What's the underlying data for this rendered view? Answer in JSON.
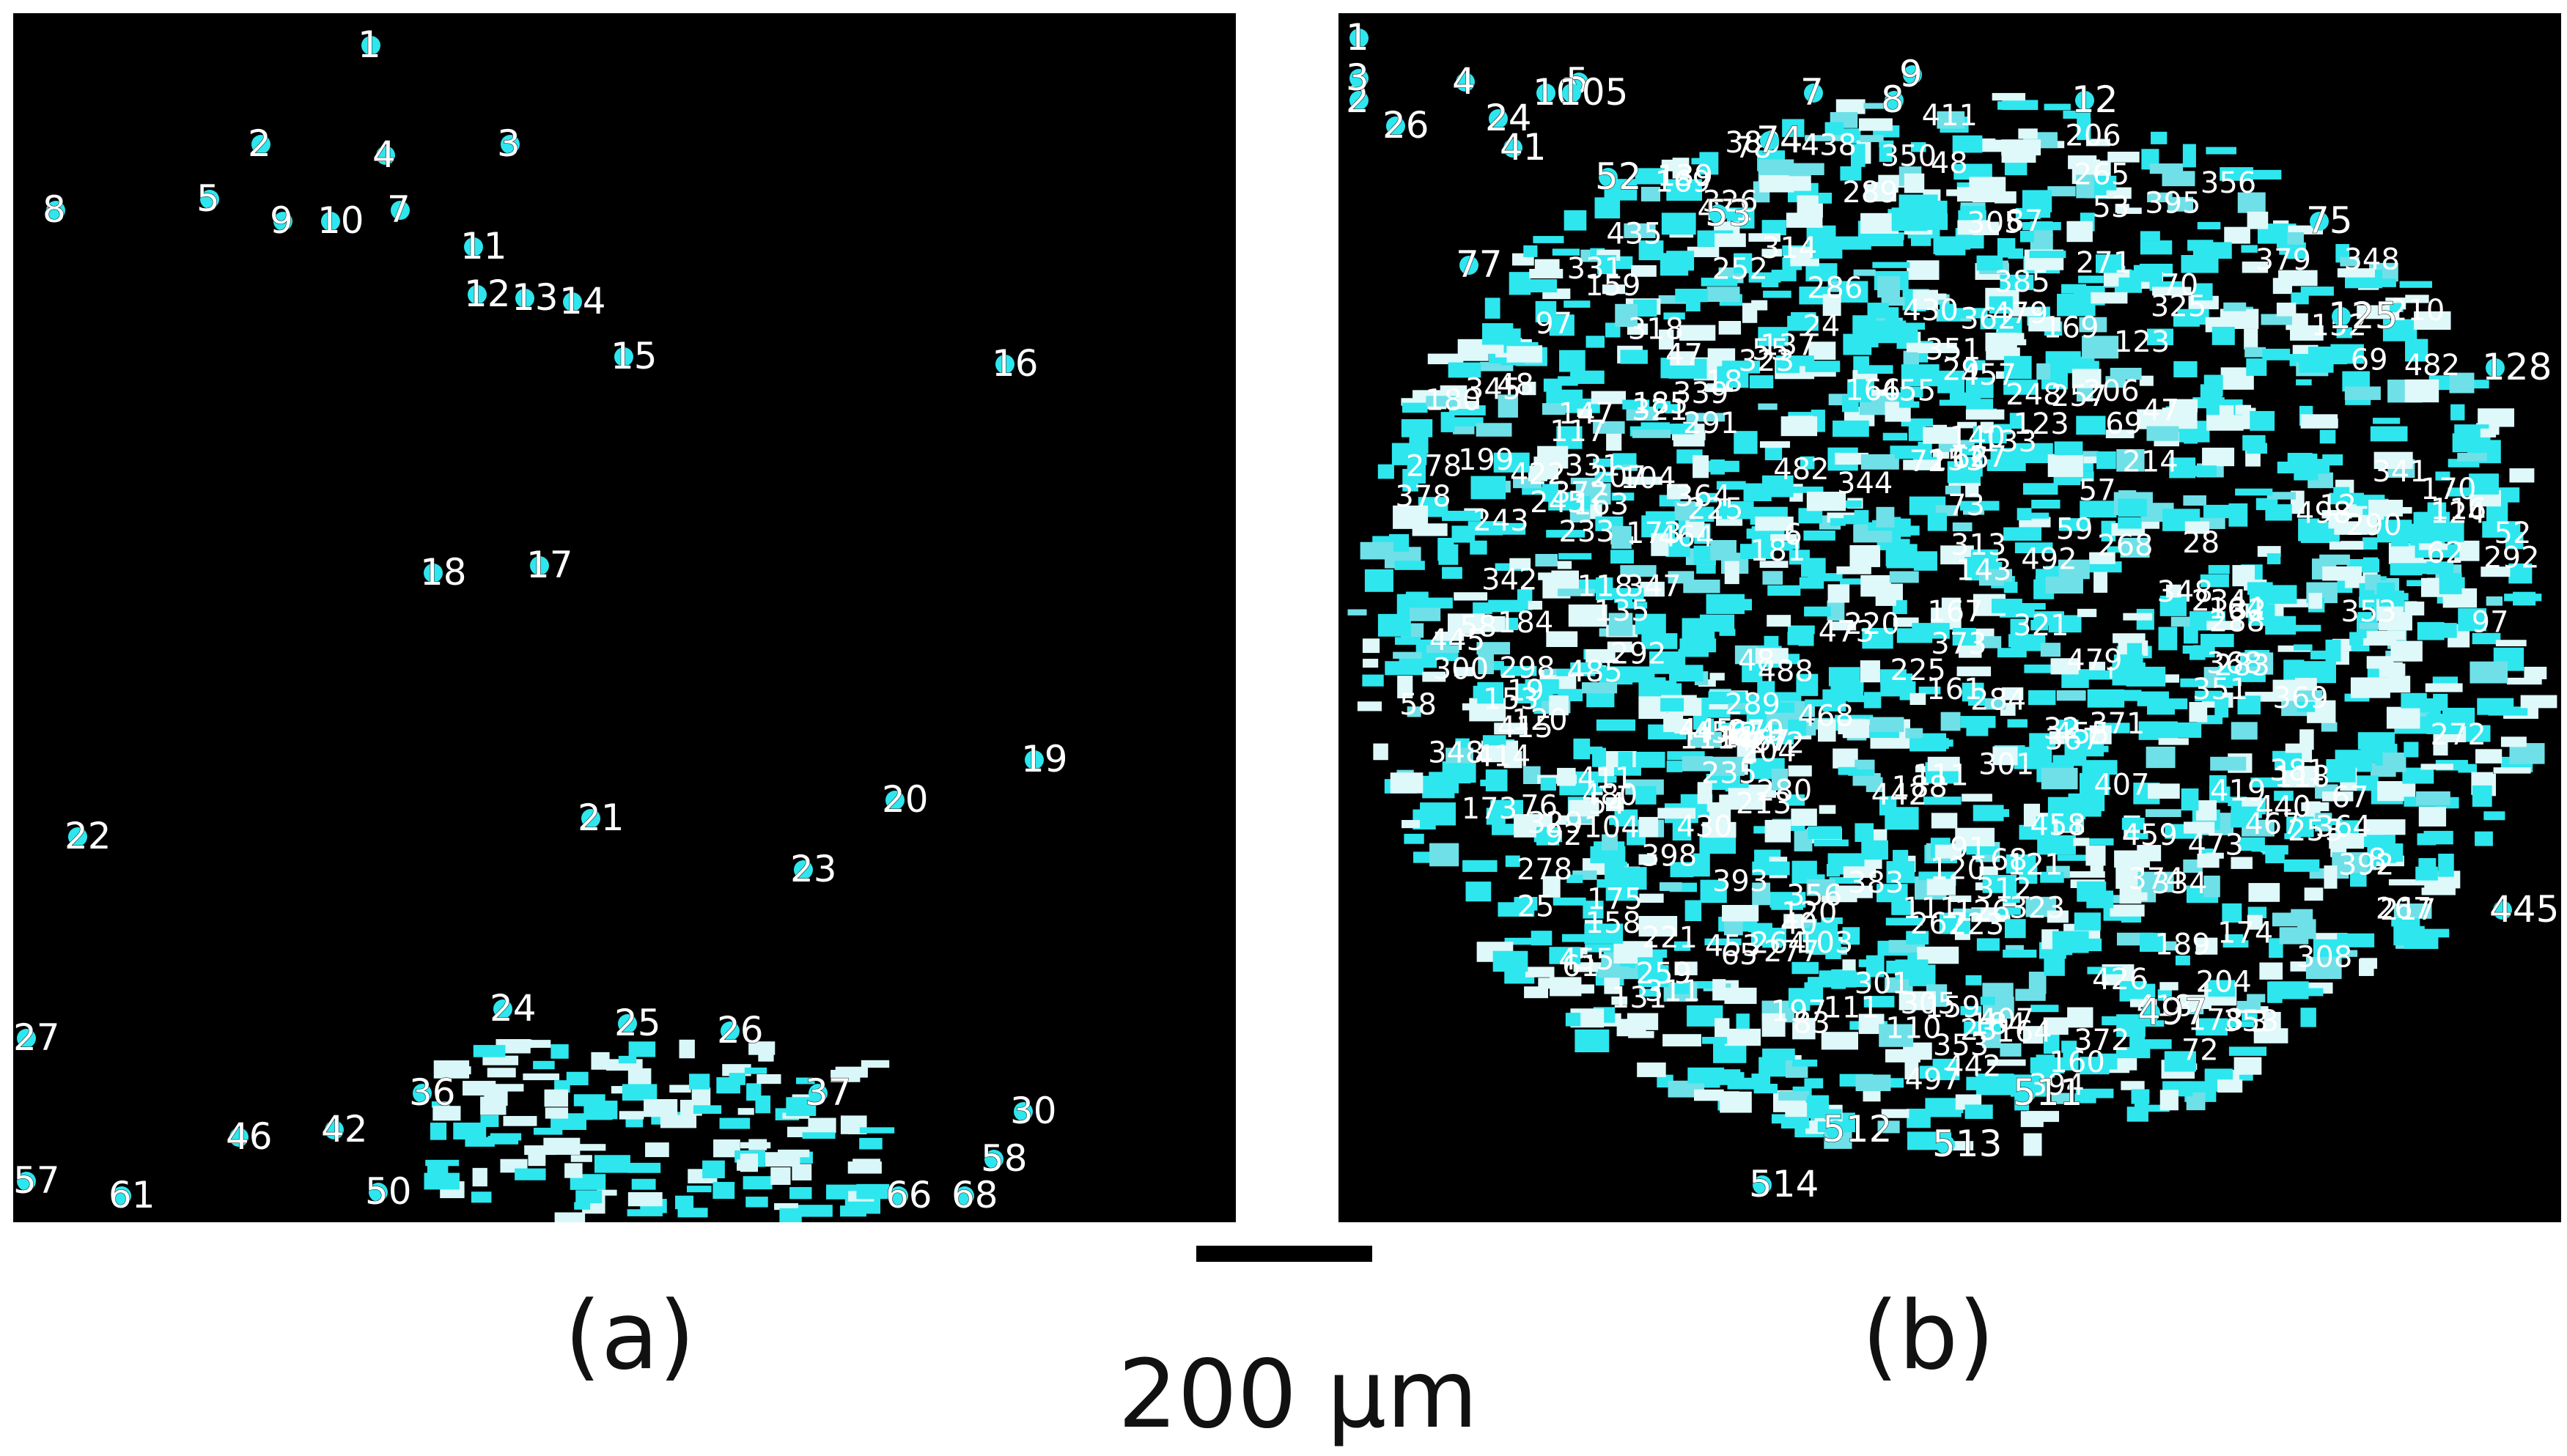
{
  "figure": {
    "panel_a_label": "(a)",
    "panel_b_label": "(b)",
    "scale_label": "200 µm"
  },
  "colors": {
    "background": "#000000",
    "marker": "#2ee6ee",
    "number_text": "#ffffff"
  },
  "panel_a": {
    "labels": [
      "1",
      "2",
      "3",
      "4",
      "5",
      "7",
      "8",
      "9",
      "10",
      "11",
      "12",
      "13",
      "14",
      "15",
      "16",
      "17",
      "18",
      "19",
      "20",
      "21",
      "22",
      "23",
      "24",
      "25",
      "26",
      "27",
      "30",
      "36",
      "37",
      "42",
      "46",
      "50",
      "57",
      "58",
      "61",
      "66",
      "68"
    ]
  },
  "panel_b": {
    "labels": [
      "1",
      "2",
      "3",
      "4",
      "5",
      "7",
      "8",
      "9",
      "10",
      "12",
      "24",
      "26",
      "41",
      "52",
      "53",
      "74",
      "75",
      "77",
      "105",
      "125",
      "128",
      "445",
      "497",
      "511",
      "512",
      "513",
      "514"
    ]
  }
}
